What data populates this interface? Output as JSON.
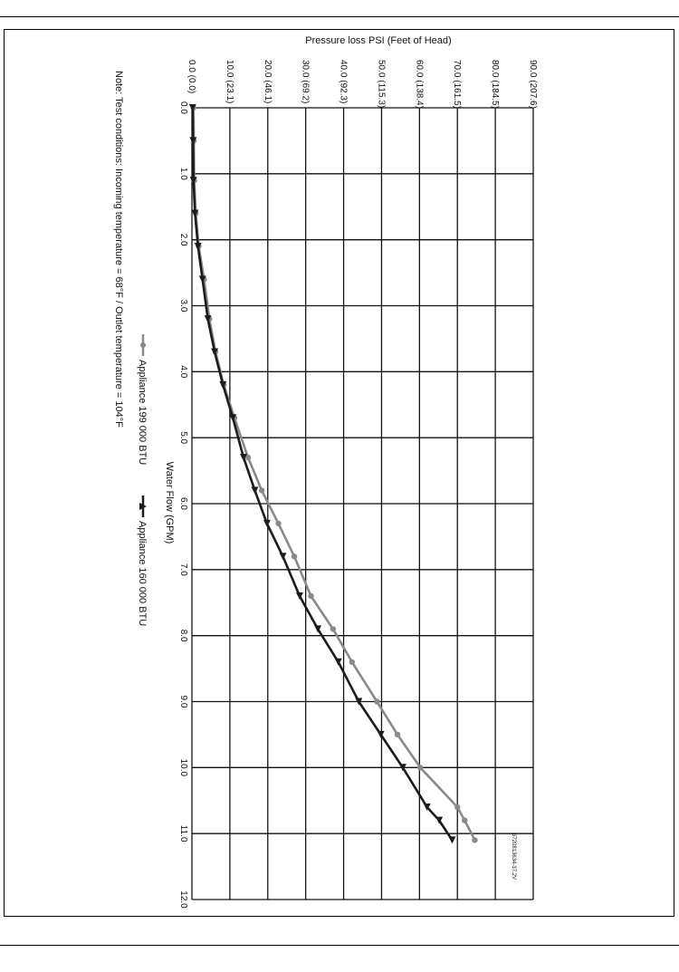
{
  "chart_data": {
    "type": "line",
    "orientation": "rotated-90-clockwise",
    "title": "Pressure loss PSI  (Feet of Head)",
    "xlabel": "Water Flow (GPM)",
    "ylabel": "Pressure loss PSI  (Feet of Head)",
    "xlim": [
      0,
      12
    ],
    "ylim": [
      0,
      90
    ],
    "x_ticks": [
      "0.0",
      "1.0",
      "2.0",
      "3.0",
      "4.0",
      "5.0",
      "6.0",
      "7.0",
      "8.0",
      "9.0",
      "10.0",
      "11.0",
      "12.0"
    ],
    "y_ticks": [
      "0.0 (0.0)",
      "10.0 (23.1)",
      "20.0 (46.1)",
      "30.0 (69.2)",
      "40.0 (92.3)",
      "50.0 (115.3)",
      "60.0 (138.4)",
      "70.0 (161.5)",
      "80.0 (184.5)",
      "90.0 (207.6)"
    ],
    "grid": true,
    "legend_position": "bottom-center",
    "series": [
      {
        "name": "Appliance 199 000 BTU",
        "color": "#8a8a8a",
        "marker": "circle",
        "x": [
          0.0,
          0.5,
          1.1,
          1.6,
          2.1,
          2.6,
          3.2,
          3.7,
          4.2,
          4.7,
          5.3,
          5.8,
          6.3,
          6.8,
          7.4,
          7.9,
          8.4,
          9.0,
          9.5,
          10.0,
          10.6,
          10.8,
          11.1
        ],
        "values": [
          0.4,
          0.5,
          0.6,
          1.0,
          1.8,
          3.2,
          4.6,
          6.2,
          8.4,
          11.2,
          14.8,
          18.4,
          22.8,
          27.0,
          31.4,
          37.2,
          42.2,
          48.8,
          54.2,
          60.2,
          70.0,
          71.9,
          74.6
        ]
      },
      {
        "name": "Appliance 160 000 BTU",
        "color": "#1c1c1c",
        "marker": "triangle",
        "x": [
          0.0,
          0.5,
          1.1,
          1.6,
          2.1,
          2.6,
          3.2,
          3.7,
          4.2,
          4.7,
          5.3,
          5.8,
          6.3,
          6.8,
          7.4,
          7.9,
          8.4,
          9.0,
          9.5,
          10.0,
          10.6,
          10.8,
          11.1
        ],
        "values": [
          0.2,
          0.3,
          0.4,
          0.8,
          1.6,
          2.8,
          4.2,
          6.0,
          8.2,
          10.8,
          13.6,
          16.6,
          19.8,
          24.0,
          28.4,
          33.2,
          38.6,
          44.0,
          49.8,
          55.6,
          62.0,
          65.2,
          68.6
        ]
      }
    ]
  },
  "note": "Note:  Test conditions:  Incoming temperature = 68°F  /  Outlet temperature = 104°F",
  "figure_id": "6720813634-37.2V"
}
